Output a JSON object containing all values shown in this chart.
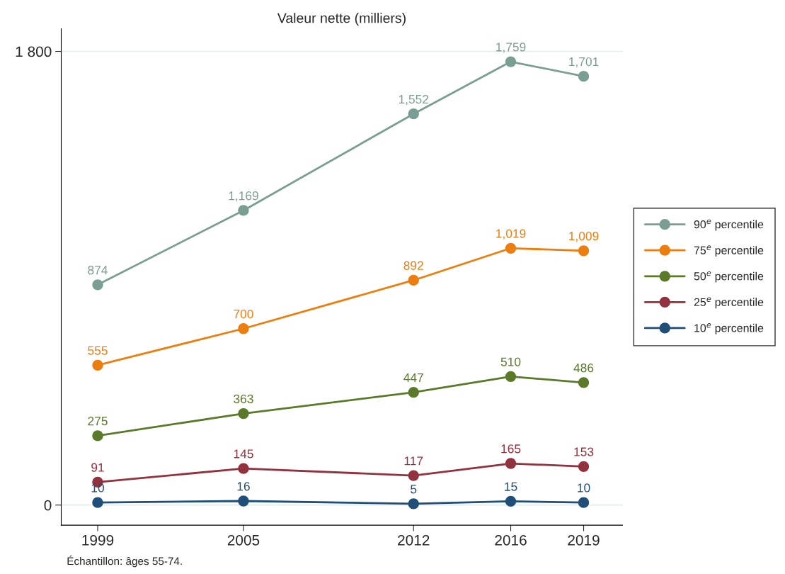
{
  "chart_data": {
    "type": "line",
    "title": "Valeur nette (milliers)",
    "x": [
      1999,
      2005,
      2012,
      2016,
      2019
    ],
    "xlim": [
      1997.5,
      2020.6
    ],
    "xticks": [
      1999,
      2005,
      2012,
      2016,
      2019
    ],
    "ylim": [
      -80,
      1890
    ],
    "yticks": [
      {
        "value": 0,
        "label": "0"
      },
      {
        "value": 1800,
        "label": "1 800"
      }
    ],
    "grid": "y",
    "legend": "right",
    "marker": "circle",
    "line_style": "solid",
    "series": [
      {
        "name": "90$^{e}$ percentile",
        "color": "#7a9e94",
        "values": [
          874,
          1169,
          1552,
          1759,
          1701
        ],
        "value_labels": [
          "874",
          "1,169",
          "1,552",
          "1,759",
          "1,701"
        ]
      },
      {
        "name": "75$^{e}$ percentile",
        "color": "#ec7d0f",
        "values": [
          555,
          700,
          892,
          1019,
          1009
        ],
        "value_labels": [
          "555",
          "700",
          "892",
          "1,019",
          "1,009"
        ]
      },
      {
        "name": "50$^{e}$ percentile",
        "color": "#5a7a2a",
        "values": [
          275,
          363,
          447,
          510,
          486
        ],
        "value_labels": [
          "275",
          "363",
          "447",
          "510",
          "486"
        ]
      },
      {
        "name": "25$^{e}$ percentile",
        "color": "#93323f",
        "values": [
          91,
          145,
          117,
          165,
          153
        ],
        "value_labels": [
          "91",
          "145",
          "117",
          "165",
          "153"
        ]
      },
      {
        "name": "10$^{e}$ percentile",
        "color": "#1f4e79",
        "values": [
          10,
          16,
          5,
          15,
          10
        ],
        "value_labels": [
          "10",
          "16",
          "5",
          "15",
          "10"
        ]
      }
    ],
    "annotations": [
      "Échantillon: âges 55-74."
    ]
  }
}
